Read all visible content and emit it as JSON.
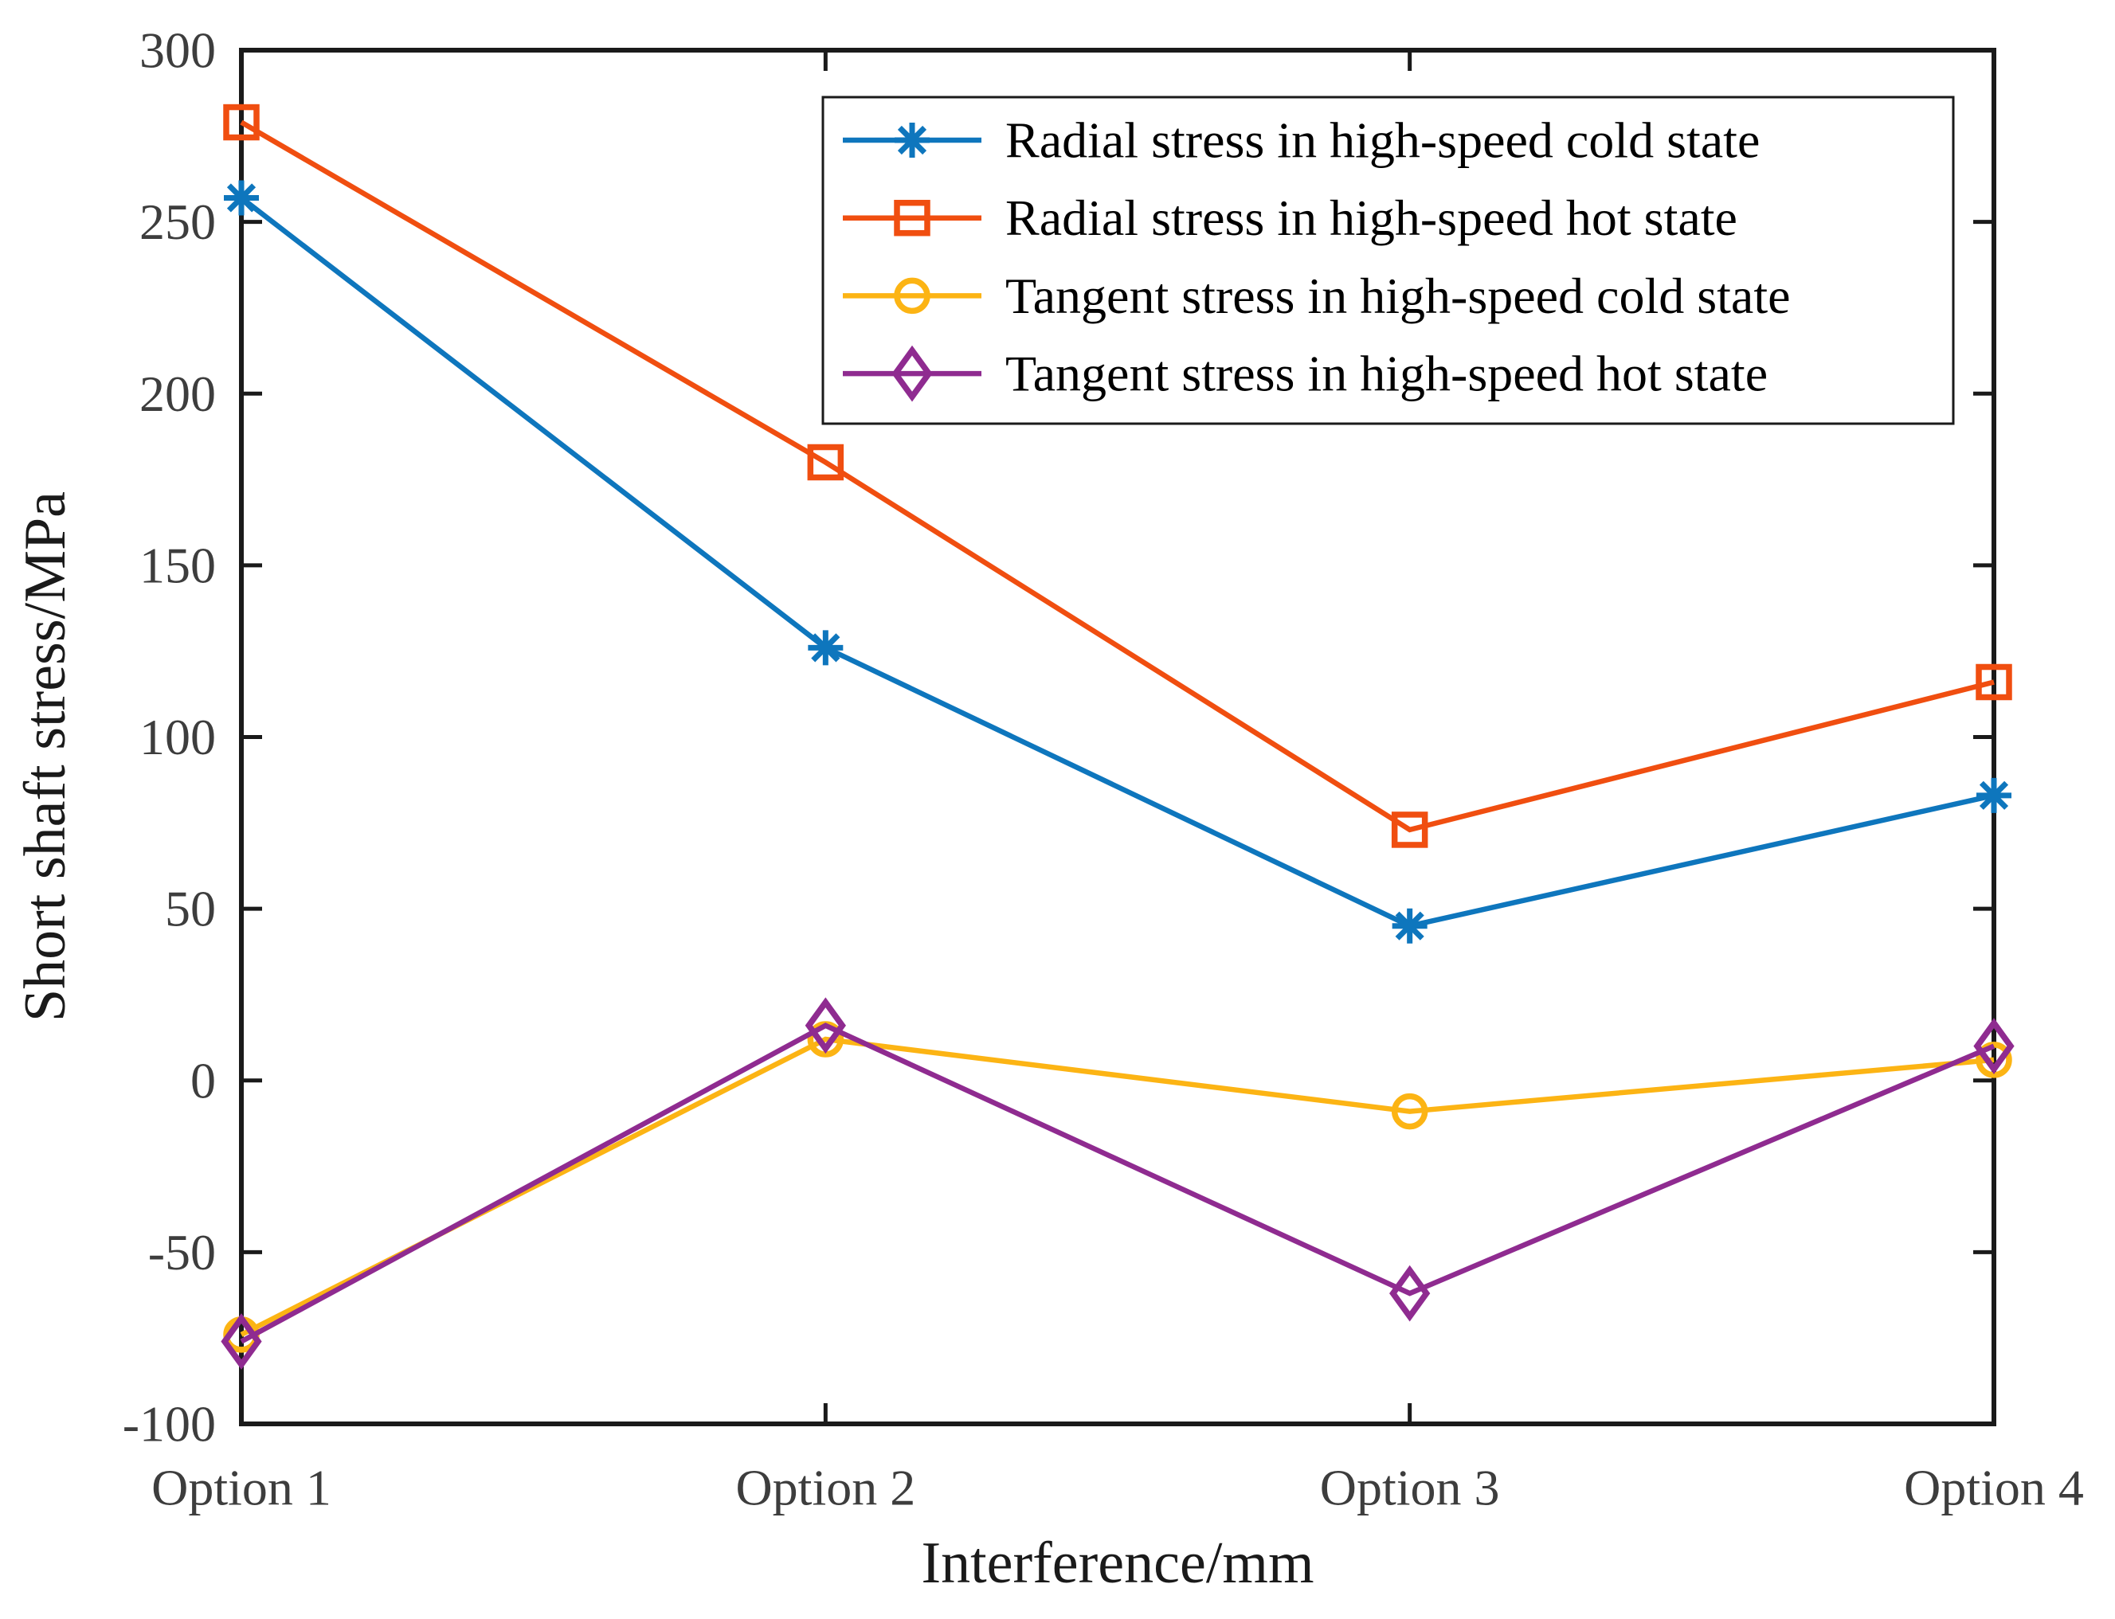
{
  "figure": {
    "background": "#FFFFFF"
  },
  "colors": {
    "axis_line": "#1A1A1A",
    "tick_label": "#3D3D3D",
    "axis_label": "#1A1A1A",
    "legend_border": "#1A1A1A",
    "legend_text": "#000000"
  },
  "chart_data": {
    "type": "line",
    "title": "",
    "xlabel": "Interference/mm",
    "ylabel": "Short shaft stress/MPa",
    "categories": [
      "Option 1",
      "Option 2",
      "Option 3",
      "Option 4"
    ],
    "ylim": [
      -100,
      300
    ],
    "yticks": [
      300,
      250,
      200,
      150,
      100,
      50,
      0,
      -50,
      -100
    ],
    "grid": false,
    "legend_position": "top-right-inside",
    "series": [
      {
        "name": "Radial stress in high-speed cold state",
        "marker": "asterisk",
        "color": "#0E76BD",
        "values": [
          257,
          126,
          45,
          83
        ]
      },
      {
        "name": "Radial stress in high-speed hot state",
        "marker": "square",
        "color": "#F04E10",
        "values": [
          279,
          180,
          73,
          116
        ]
      },
      {
        "name": "Tangent stress in high-speed cold state",
        "marker": "circle",
        "color": "#FCB414",
        "values": [
          -74,
          12,
          -9,
          6
        ]
      },
      {
        "name": "Tangent stress in high-speed hot state",
        "marker": "diamond",
        "color": "#8F2B90",
        "values": [
          -76,
          16,
          -62,
          10
        ]
      }
    ]
  }
}
